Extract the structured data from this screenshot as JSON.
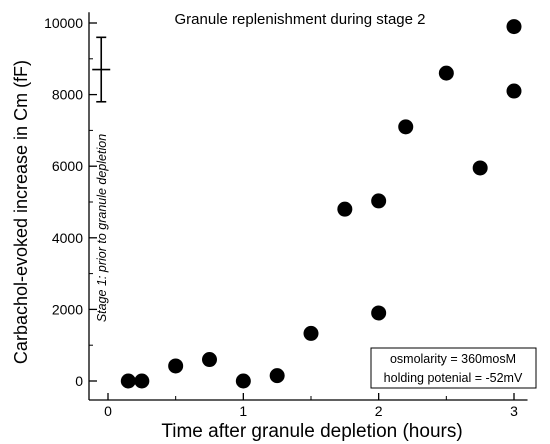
{
  "chart_data": {
    "type": "scatter",
    "title": "Granule replenishment during stage 2",
    "xlabel": "Time after granule depletion (hours)",
    "ylabel": "Carbachol-evoked increase in Cm  (fF)",
    "xlim": [
      -0.18,
      3.1
    ],
    "ylim": [
      -300,
      10300
    ],
    "xticks": [
      0,
      1,
      2,
      3
    ],
    "yticks": [
      0,
      2000,
      4000,
      6000,
      8000,
      10000
    ],
    "x_tick_labels": [
      "0",
      "1",
      "2",
      "3"
    ],
    "y_tick_labels": [
      "0",
      "2000",
      "4000",
      "6000",
      "8000",
      "10000"
    ],
    "grid": false,
    "series": [
      {
        "points": [
          {
            "x": 0.15,
            "y": 0
          },
          {
            "x": 0.25,
            "y": 0
          },
          {
            "x": 0.5,
            "y": 420
          },
          {
            "x": 0.75,
            "y": 600
          },
          {
            "x": 1.0,
            "y": 0
          },
          {
            "x": 1.25,
            "y": 150
          },
          {
            "x": 1.5,
            "y": 1330
          },
          {
            "x": 1.75,
            "y": 4800
          },
          {
            "x": 2.0,
            "y": 5030
          },
          {
            "x": 2.0,
            "y": 1900
          },
          {
            "x": 2.2,
            "y": 7100
          },
          {
            "x": 2.5,
            "y": 8600
          },
          {
            "x": 2.75,
            "y": 5950
          },
          {
            "x": 3.0,
            "y": 9900
          },
          {
            "x": 3.0,
            "y": 8100
          }
        ]
      }
    ],
    "stage1": {
      "label": "Stage 1: prior to granule depletion",
      "x": -0.05,
      "mean": 8700,
      "upper": 9600,
      "lower": 7800
    },
    "legend": {
      "placement": "bottom-right",
      "lines": [
        "osmolarity = 360mosM",
        "holding potenial = -52mV"
      ]
    }
  }
}
